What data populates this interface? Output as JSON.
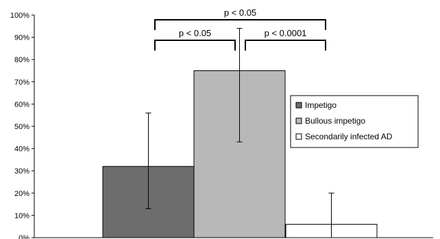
{
  "chart_data": {
    "type": "bar",
    "categories": [
      "Impetigo",
      "Bullous impetigo",
      "Secondarily infected AD"
    ],
    "series": [
      {
        "name": "Impetigo",
        "value": 32,
        "error_low": 13,
        "error_high": 56,
        "color": "#6d6d6d"
      },
      {
        "name": "Bullous impetigo",
        "value": 75,
        "error_low": 43,
        "error_high": 94,
        "color": "#b8b8b8"
      },
      {
        "name": "Secondarily infected AD",
        "value": 6,
        "error_low": 0,
        "error_high": 20,
        "color": "#ffffff"
      }
    ],
    "yticks": [
      "0%",
      "10%",
      "20%",
      "30%",
      "40%",
      "50%",
      "60%",
      "70%",
      "80%",
      "90%",
      "100%"
    ],
    "ylim": [
      0,
      100
    ],
    "legend_position": "right",
    "significance": [
      {
        "label": "p < 0.05",
        "from": 0,
        "to": 1
      },
      {
        "label": "p < 0.0001",
        "from": 1,
        "to": 2
      },
      {
        "label": "p < 0.05",
        "from": 0,
        "to": 2
      }
    ]
  }
}
